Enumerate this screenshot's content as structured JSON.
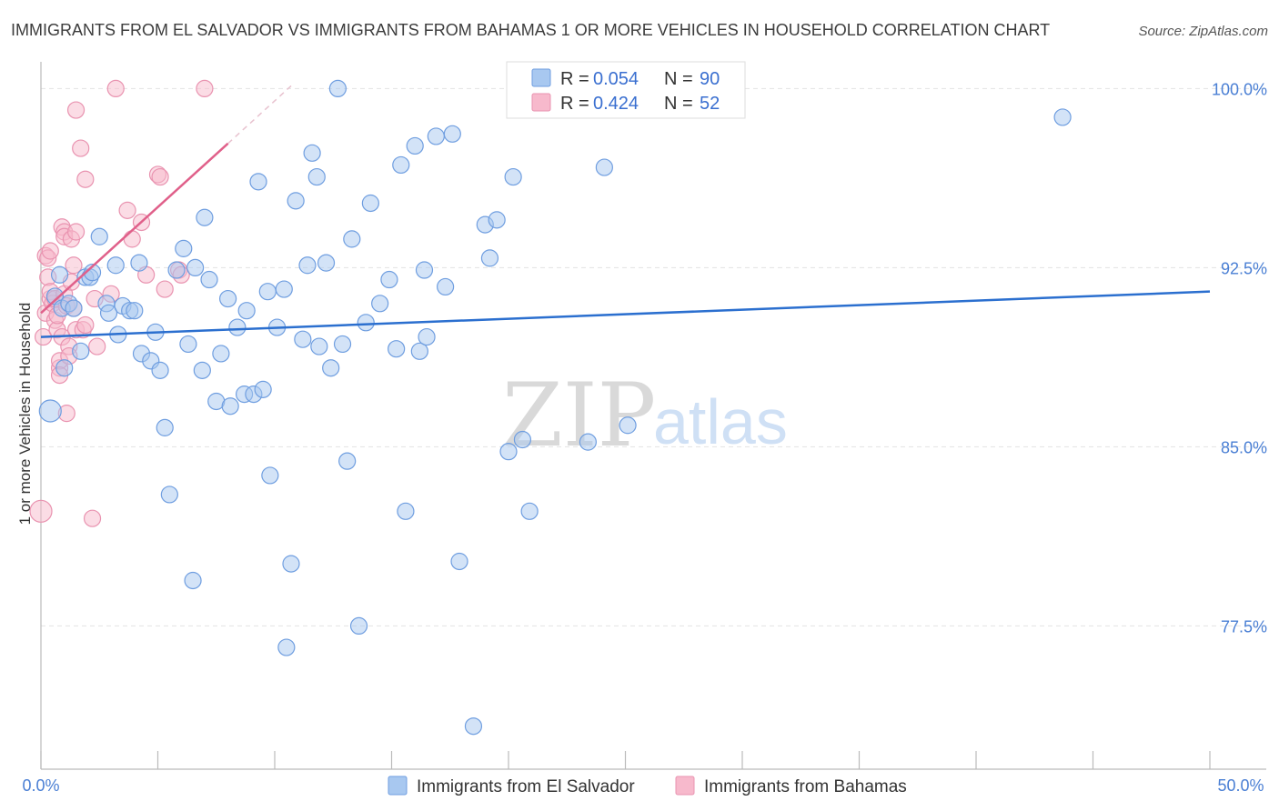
{
  "header": {
    "title": "IMMIGRANTS FROM EL SALVADOR VS IMMIGRANTS FROM BAHAMAS 1 OR MORE VEHICLES IN HOUSEHOLD CORRELATION CHART",
    "source": "Source: ZipAtlas.com"
  },
  "watermark": {
    "zip": "ZIP",
    "atlas": "atlas"
  },
  "legend_top": [
    {
      "r_label": "R =",
      "r_value": "0.054",
      "n_label": "N =",
      "n_value": "90"
    },
    {
      "r_label": "R =",
      "r_value": "0.424",
      "n_label": "N =",
      "n_value": "52"
    }
  ],
  "colors": {
    "series1_fill": "#a8c8f0",
    "series1_stroke": "#6f9ee0",
    "series1_line": "#2b6fcf",
    "series2_fill": "#f7b9cc",
    "series2_stroke": "#e993b0",
    "series2_line": "#e0608a",
    "grid": "#e2e2e2",
    "tick_text": "#4a7fd4"
  },
  "chart_data": {
    "type": "scatter",
    "title": "IMMIGRANTS FROM EL SALVADOR VS IMMIGRANTS FROM BAHAMAS 1 OR MORE VEHICLES IN HOUSEHOLD CORRELATION CHART",
    "xlabel": "",
    "ylabel": "1 or more Vehicles in Household",
    "xlim": [
      0,
      50
    ],
    "ylim": [
      71.5,
      101.5
    ],
    "x_tick_labels": [
      "0.0%",
      "50.0%"
    ],
    "y_ticks": [
      77.5,
      85.0,
      92.5,
      100.0
    ],
    "y_tick_labels": [
      "77.5%",
      "85.0%",
      "92.5%",
      "100.0%"
    ],
    "grid": true,
    "legend_position": "top-center",
    "series": [
      {
        "name": "Immigrants from El Salvador",
        "r": 0.054,
        "n": 90,
        "trend": {
          "x": [
            0,
            50
          ],
          "y": [
            89.6,
            91.5
          ]
        },
        "points": [
          [
            0.4,
            86.5
          ],
          [
            0.6,
            91.3
          ],
          [
            0.8,
            92.2
          ],
          [
            0.9,
            90.8
          ],
          [
            1.0,
            88.3
          ],
          [
            1.2,
            91.0
          ],
          [
            1.4,
            90.8
          ],
          [
            1.7,
            89.0
          ],
          [
            1.9,
            92.1
          ],
          [
            2.1,
            92.1
          ],
          [
            2.2,
            92.3
          ],
          [
            2.5,
            93.8
          ],
          [
            2.8,
            91.0
          ],
          [
            2.9,
            90.6
          ],
          [
            3.2,
            92.6
          ],
          [
            3.3,
            89.7
          ],
          [
            3.5,
            90.9
          ],
          [
            3.8,
            90.7
          ],
          [
            4.0,
            90.7
          ],
          [
            4.2,
            92.7
          ],
          [
            4.3,
            88.9
          ],
          [
            4.7,
            88.6
          ],
          [
            4.9,
            89.8
          ],
          [
            5.1,
            88.2
          ],
          [
            5.3,
            85.8
          ],
          [
            5.5,
            83.0
          ],
          [
            5.8,
            92.4
          ],
          [
            6.1,
            93.3
          ],
          [
            6.3,
            89.3
          ],
          [
            6.5,
            79.4
          ],
          [
            6.6,
            92.5
          ],
          [
            6.9,
            88.2
          ],
          [
            7.0,
            94.6
          ],
          [
            7.2,
            92.0
          ],
          [
            7.5,
            86.9
          ],
          [
            7.7,
            88.9
          ],
          [
            8.0,
            91.2
          ],
          [
            8.1,
            86.7
          ],
          [
            8.4,
            90.0
          ],
          [
            8.7,
            87.2
          ],
          [
            8.8,
            90.7
          ],
          [
            9.1,
            87.2
          ],
          [
            9.3,
            96.1
          ],
          [
            9.5,
            87.4
          ],
          [
            9.7,
            91.5
          ],
          [
            9.8,
            83.8
          ],
          [
            10.1,
            90.0
          ],
          [
            10.4,
            91.6
          ],
          [
            10.5,
            76.6
          ],
          [
            10.7,
            80.1
          ],
          [
            10.9,
            95.3
          ],
          [
            11.2,
            89.5
          ],
          [
            11.4,
            92.6
          ],
          [
            11.6,
            97.3
          ],
          [
            11.8,
            96.3
          ],
          [
            11.9,
            89.2
          ],
          [
            12.2,
            92.7
          ],
          [
            12.4,
            88.3
          ],
          [
            12.7,
            100.0
          ],
          [
            12.9,
            89.3
          ],
          [
            13.1,
            84.4
          ],
          [
            13.3,
            93.7
          ],
          [
            13.6,
            77.5
          ],
          [
            13.9,
            90.2
          ],
          [
            14.1,
            95.2
          ],
          [
            14.5,
            91.0
          ],
          [
            14.9,
            92.0
          ],
          [
            15.2,
            89.1
          ],
          [
            15.4,
            96.8
          ],
          [
            15.6,
            82.3
          ],
          [
            16.0,
            97.6
          ],
          [
            16.2,
            89.0
          ],
          [
            16.4,
            92.4
          ],
          [
            16.5,
            89.6
          ],
          [
            16.9,
            98.0
          ],
          [
            17.3,
            91.7
          ],
          [
            17.6,
            98.1
          ],
          [
            17.9,
            80.2
          ],
          [
            18.5,
            73.3
          ],
          [
            19.0,
            94.3
          ],
          [
            19.2,
            92.9
          ],
          [
            19.5,
            94.5
          ],
          [
            20.0,
            84.8
          ],
          [
            20.2,
            96.3
          ],
          [
            20.6,
            85.3
          ],
          [
            20.9,
            82.3
          ],
          [
            23.4,
            85.2
          ],
          [
            24.1,
            96.7
          ],
          [
            25.1,
            85.9
          ],
          [
            43.7,
            98.8
          ]
        ]
      },
      {
        "name": "Immigrants from Bahamas",
        "r": 0.424,
        "n": 52,
        "trend": {
          "x": [
            0,
            8.0
          ],
          "y": [
            90.6,
            97.7
          ]
        },
        "trend_dashed": {
          "x": [
            8.0,
            10.8
          ],
          "y": [
            97.7,
            100.2
          ]
        },
        "points": [
          [
            0.0,
            82.3
          ],
          [
            0.1,
            89.6
          ],
          [
            0.2,
            90.6
          ],
          [
            0.2,
            93.0
          ],
          [
            0.3,
            92.9
          ],
          [
            0.3,
            92.1
          ],
          [
            0.4,
            91.2
          ],
          [
            0.4,
            91.5
          ],
          [
            0.4,
            93.2
          ],
          [
            0.5,
            91.0
          ],
          [
            0.6,
            90.3
          ],
          [
            0.6,
            91.2
          ],
          [
            0.7,
            89.9
          ],
          [
            0.7,
            90.5
          ],
          [
            0.8,
            88.3
          ],
          [
            0.8,
            88.6
          ],
          [
            0.8,
            88.0
          ],
          [
            0.9,
            94.2
          ],
          [
            0.9,
            89.6
          ],
          [
            1.0,
            94.0
          ],
          [
            1.0,
            93.8
          ],
          [
            1.0,
            91.4
          ],
          [
            1.1,
            90.9
          ],
          [
            1.1,
            86.4
          ],
          [
            1.2,
            89.2
          ],
          [
            1.2,
            88.8
          ],
          [
            1.3,
            93.7
          ],
          [
            1.3,
            91.9
          ],
          [
            1.4,
            92.6
          ],
          [
            1.4,
            90.8
          ],
          [
            1.5,
            99.1
          ],
          [
            1.5,
            89.9
          ],
          [
            1.5,
            94.0
          ],
          [
            1.7,
            97.5
          ],
          [
            1.8,
            89.9
          ],
          [
            1.9,
            90.1
          ],
          [
            1.9,
            96.2
          ],
          [
            2.2,
            82.0
          ],
          [
            2.3,
            91.2
          ],
          [
            2.4,
            89.2
          ],
          [
            3.0,
            91.4
          ],
          [
            3.2,
            100.0
          ],
          [
            3.7,
            94.9
          ],
          [
            3.9,
            93.7
          ],
          [
            4.3,
            94.4
          ],
          [
            4.5,
            92.2
          ],
          [
            5.0,
            96.4
          ],
          [
            5.1,
            96.3
          ],
          [
            5.3,
            91.6
          ],
          [
            5.9,
            92.4
          ],
          [
            6.0,
            92.2
          ],
          [
            7.0,
            100.0
          ]
        ]
      }
    ]
  }
}
